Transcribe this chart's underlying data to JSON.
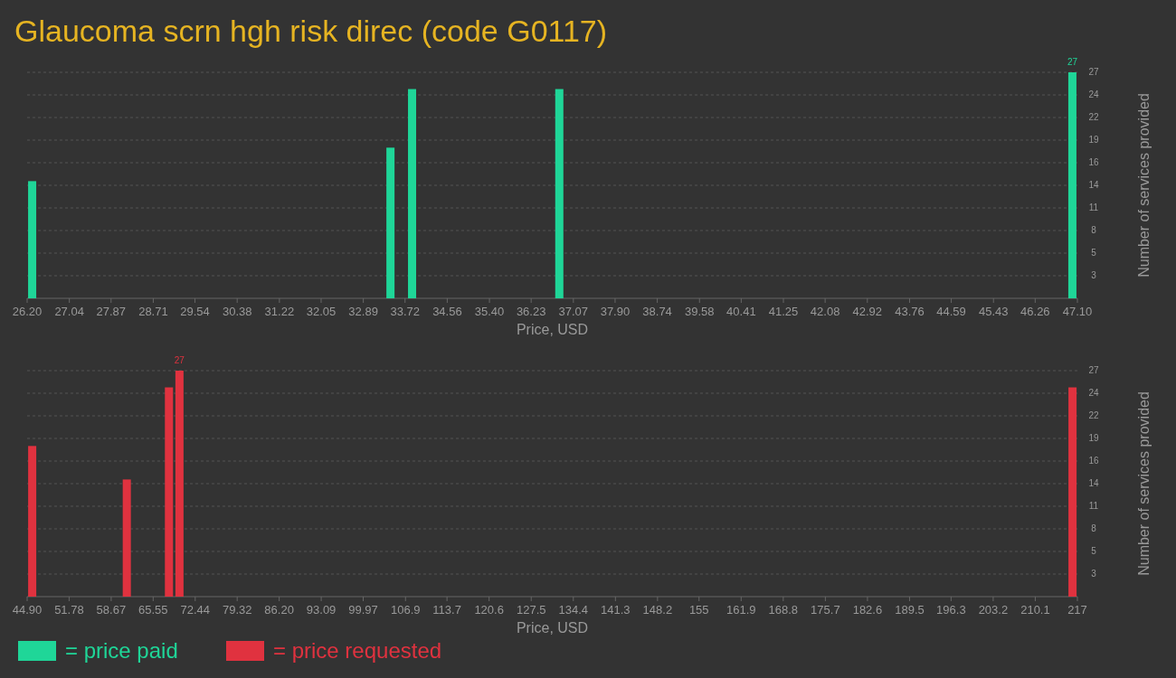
{
  "chart_data": [
    {
      "type": "bar",
      "title": "Glaucoma scrn hgh risk direc (code G0117)",
      "xlabel": "Price, USD",
      "ylabel": "Number of services provided",
      "x": [
        26.3,
        33.43,
        33.86,
        36.79,
        47.0
      ],
      "series": [
        {
          "name": "= price paid",
          "color": "#1fd698",
          "values": [
            14,
            18,
            25,
            25,
            27
          ]
        }
      ],
      "value_labels": [
        null,
        null,
        null,
        null,
        "27"
      ],
      "xlim": [
        26.2,
        47.1
      ],
      "xticks": [
        {
          "value": 26.2,
          "label": "26.20"
        },
        27.04,
        27.87,
        28.71,
        29.54,
        30.38,
        31.22,
        32.05,
        32.89,
        33.72,
        34.56,
        {
          "value": 35.4,
          "label": "35.40"
        },
        36.23,
        37.07,
        {
          "value": 37.9,
          "label": "37.90"
        },
        38.74,
        39.58,
        40.41,
        41.25,
        42.08,
        42.92,
        43.76,
        44.59,
        45.43,
        46.26,
        {
          "value": 47.1,
          "label": "47.10"
        }
      ],
      "ylim": [
        0,
        27
      ],
      "yticks": [
        {
          "value": 2.7,
          "label": "3"
        },
        {
          "value": 5.4,
          "label": "5"
        },
        {
          "value": 8.1,
          "label": "8"
        },
        {
          "value": 10.8,
          "label": "11"
        },
        {
          "value": 13.5,
          "label": "14"
        },
        {
          "value": 16.2,
          "label": "16"
        },
        {
          "value": 18.9,
          "label": "19"
        },
        {
          "value": 21.6,
          "label": "22"
        },
        {
          "value": 24.3,
          "label": "24"
        },
        27
      ],
      "grid": "y",
      "legend": "bottom left"
    },
    {
      "type": "bar",
      "xlabel": "Price, USD",
      "ylabel": "Number of services provided",
      "x": [
        45.73,
        61.23,
        68.14,
        69.86,
        216.2
      ],
      "series": [
        {
          "name": "= price requested",
          "color": "#e0323f",
          "values": [
            18,
            14,
            25,
            27,
            25
          ]
        }
      ],
      "value_labels": [
        null,
        null,
        null,
        "27",
        null
      ],
      "xlim": [
        44.9,
        217
      ],
      "xticks": [
        {
          "value": 44.9,
          "label": "44.90"
        },
        51.78,
        58.67,
        65.55,
        72.44,
        79.32,
        {
          "value": 86.2,
          "label": "86.20"
        },
        93.09,
        99.97,
        106.9,
        113.7,
        120.6,
        127.5,
        134.4,
        141.3,
        148.2,
        155,
        161.9,
        168.8,
        175.7,
        182.6,
        189.5,
        196.3,
        203.2,
        210.1,
        217
      ],
      "ylim": [
        0,
        27
      ],
      "yticks": [
        {
          "value": 2.7,
          "label": "3"
        },
        {
          "value": 5.4,
          "label": "5"
        },
        {
          "value": 8.1,
          "label": "8"
        },
        {
          "value": 10.8,
          "label": "11"
        },
        {
          "value": 13.5,
          "label": "14"
        },
        {
          "value": 16.2,
          "label": "16"
        },
        {
          "value": 18.9,
          "label": "19"
        },
        {
          "value": 21.6,
          "label": "22"
        },
        {
          "value": 24.3,
          "label": "24"
        },
        27
      ],
      "grid": "y",
      "legend": "bottom left"
    }
  ]
}
